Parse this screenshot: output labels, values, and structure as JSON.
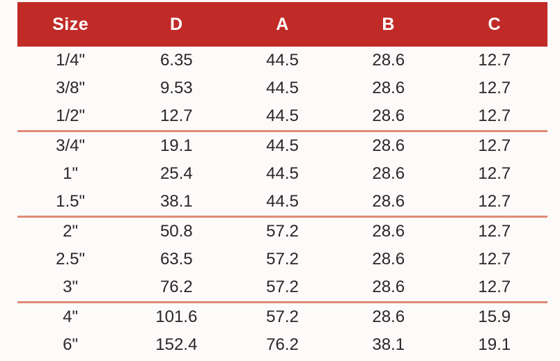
{
  "table": {
    "columns": [
      "Size",
      "D",
      "A",
      "B",
      "C"
    ],
    "header_bg": "#c02b28",
    "header_text_color": "#ffffff",
    "separator_color": "#e18a76",
    "body_text_color": "#2b2627",
    "groups": [
      {
        "rows": [
          [
            "1/4\"",
            "6.35",
            "44.5",
            "28.6",
            "12.7"
          ],
          [
            "3/8\"",
            "9.53",
            "44.5",
            "28.6",
            "12.7"
          ],
          [
            "1/2\"",
            "12.7",
            "44.5",
            "28.6",
            "12.7"
          ]
        ]
      },
      {
        "rows": [
          [
            "3/4\"",
            "19.1",
            "44.5",
            "28.6",
            "12.7"
          ],
          [
            "1\"",
            "25.4",
            "44.5",
            "28.6",
            "12.7"
          ],
          [
            "1.5\"",
            "38.1",
            "44.5",
            "28.6",
            "12.7"
          ]
        ]
      },
      {
        "rows": [
          [
            "2\"",
            "50.8",
            "57.2",
            "28.6",
            "12.7"
          ],
          [
            "2.5\"",
            "63.5",
            "57.2",
            "28.6",
            "12.7"
          ],
          [
            "3\"",
            "76.2",
            "57.2",
            "28.6",
            "12.7"
          ]
        ]
      },
      {
        "rows": [
          [
            "4\"",
            "101.6",
            "57.2",
            "28.6",
            "15.9"
          ],
          [
            "6\"",
            "152.4",
            "76.2",
            "38.1",
            "19.1"
          ]
        ]
      }
    ]
  }
}
